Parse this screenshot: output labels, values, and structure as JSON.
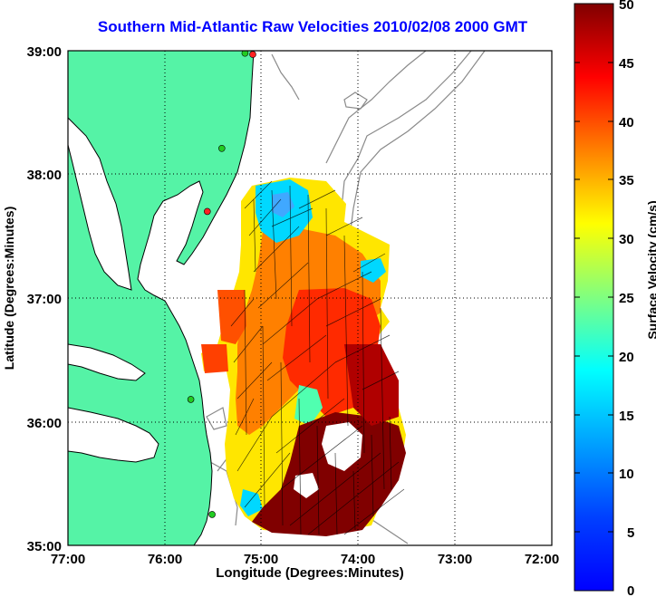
{
  "title": "Southern Mid-Atlantic Raw Velocities 2010/02/08 2000 GMT",
  "axes": {
    "xlabel": "Longitude (Degrees:Minutes)",
    "ylabel": "Latitude (Degrees:Minutes)",
    "x_ticks": [
      "77:00",
      "76:00",
      "75:00",
      "74:00",
      "73:00",
      "72:00"
    ],
    "y_ticks": [
      "39:00",
      "38:00",
      "37:00",
      "36:00",
      "35:00"
    ],
    "xlim": [
      -77,
      -72
    ],
    "ylim": [
      35,
      39
    ],
    "grid": true
  },
  "colorbar": {
    "label": "Surface Velocity (cm/s)",
    "ticks": [
      "50",
      "45",
      "40",
      "35",
      "30",
      "25",
      "20",
      "15",
      "10",
      "5",
      "0"
    ],
    "range": [
      0,
      50
    ],
    "colormap": "jet"
  },
  "colors": {
    "title": "#0000ff",
    "land": "#55f3a6",
    "coastline": "#000000",
    "bathymetry": "#8a8a8a",
    "station_ok": "#22cc22",
    "station_down": "#ff2222"
  },
  "map_data": {
    "stations": [
      {
        "lon": -75.09,
        "lat": 38.97,
        "status": "down"
      },
      {
        "lon": -75.17,
        "lat": 38.98,
        "status": "ok"
      },
      {
        "lon": -75.41,
        "lat": 38.21,
        "status": "ok"
      },
      {
        "lon": -75.56,
        "lat": 37.7,
        "status": "down"
      },
      {
        "lon": -75.73,
        "lat": 36.18,
        "status": "ok"
      },
      {
        "lon": -75.51,
        "lat": 35.25,
        "status": "ok"
      }
    ]
  }
}
